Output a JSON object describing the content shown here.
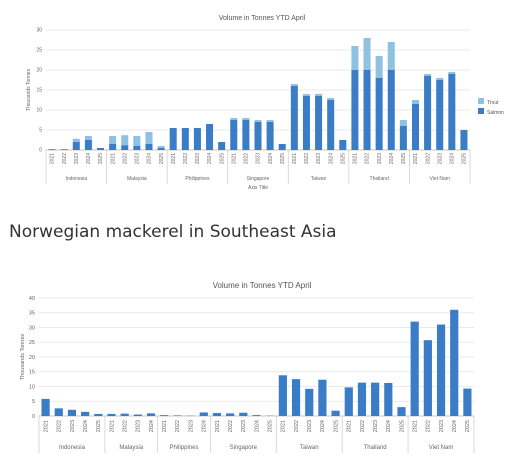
{
  "section_title": "Norwegian mackerel in Southeast Asia",
  "link_text": "",
  "chart_data": [
    {
      "type": "bar",
      "stacked": true,
      "title": "Volume in Tonnes YTD April",
      "ylabel": "Thousands Tonnes",
      "xlabel": "Axis Title",
      "ylim": [
        0,
        30
      ],
      "yticks": [
        0,
        5,
        10,
        15,
        20,
        25,
        30
      ],
      "legend": "right",
      "groups": [
        {
          "name": "Indonesia",
          "categories": [
            "2021",
            "2022",
            "2023",
            "2024",
            "2025"
          ],
          "series": [
            [
              0.2,
              0.2,
              2.0,
              2.5,
              0.5
            ],
            [
              0.0,
              0.0,
              0.8,
              1.0,
              0.0
            ]
          ]
        },
        {
          "name": "Malaysia",
          "categories": [
            "2021",
            "2022",
            "2023",
            "2024",
            "2025"
          ],
          "series": [
            [
              1.5,
              1.2,
              1.0,
              1.5,
              0.5
            ],
            [
              2.0,
              2.5,
              2.5,
              3.0,
              0.5
            ]
          ]
        },
        {
          "name": "Philippines",
          "categories": [
            "2021",
            "2022",
            "2023",
            "2024",
            "2025"
          ],
          "series": [
            [
              5.5,
              5.5,
              5.5,
              6.5,
              2.0
            ],
            [
              0.0,
              0.0,
              0.0,
              0.0,
              0.0
            ]
          ]
        },
        {
          "name": "Singapore",
          "categories": [
            "2021",
            "2022",
            "2023",
            "2024",
            "2025"
          ],
          "series": [
            [
              7.5,
              7.5,
              7.0,
              7.0,
              1.5
            ],
            [
              0.5,
              0.5,
              0.5,
              0.5,
              0.0
            ]
          ]
        },
        {
          "name": "Taiwan",
          "categories": [
            "2021",
            "2022",
            "2023",
            "2024",
            "2025"
          ],
          "series": [
            [
              16.0,
              13.5,
              13.5,
              12.5,
              2.5
            ],
            [
              0.5,
              0.5,
              0.5,
              0.5,
              0.0
            ]
          ]
        },
        {
          "name": "Thailand",
          "categories": [
            "2021",
            "2022",
            "2023",
            "2024",
            "2025"
          ],
          "series": [
            [
              20.0,
              20.0,
              18.0,
              20.0,
              6.0
            ],
            [
              6.0,
              8.0,
              5.5,
              7.0,
              1.5
            ]
          ]
        },
        {
          "name": "Viet Nam",
          "categories": [
            "2021",
            "2022",
            "2023",
            "2024",
            "2025"
          ],
          "series": [
            [
              11.5,
              18.5,
              17.5,
              19.0,
              5.0
            ],
            [
              1.0,
              0.5,
              0.5,
              0.5,
              0.0
            ]
          ]
        }
      ],
      "series_names": [
        "Salmon",
        "Trout"
      ],
      "series_colors": [
        "#3a7dc6",
        "#8fc1e3"
      ],
      "legend_order": [
        "Trout",
        "Salmon"
      ]
    },
    {
      "type": "bar",
      "title": "Volume in Tonnes YTD April",
      "ylabel": "Thousands Tonnes",
      "ylim": [
        0,
        40
      ],
      "yticks": [
        0,
        5,
        10,
        15,
        20,
        25,
        30,
        35,
        40
      ],
      "groups": [
        {
          "name": "Indonesia",
          "categories": [
            "2021",
            "2022",
            "2023",
            "2024",
            "2025"
          ],
          "values": [
            5.8,
            2.6,
            2.1,
            1.4,
            0.7
          ]
        },
        {
          "name": "Malaysia",
          "categories": [
            "2021",
            "2022",
            "2023",
            "2024"
          ],
          "values": [
            0.7,
            0.8,
            0.5,
            0.9
          ]
        },
        {
          "name": "Philippines",
          "categories": [
            "2021",
            "2022",
            "2023",
            "2024"
          ],
          "values": [
            0.3,
            0.2,
            0.1,
            1.2
          ]
        },
        {
          "name": "Singapore",
          "categories": [
            "2021",
            "2022",
            "2023",
            "2024",
            "2025"
          ],
          "values": [
            1.0,
            0.9,
            1.1,
            0.3,
            0.1
          ]
        },
        {
          "name": "Taiwan",
          "categories": [
            "2021",
            "2022",
            "2023",
            "2024",
            "2025"
          ],
          "values": [
            13.8,
            12.5,
            9.2,
            12.3,
            1.8
          ]
        },
        {
          "name": "Thailand",
          "categories": [
            "2021",
            "2022",
            "2023",
            "2024",
            "2025"
          ],
          "values": [
            9.7,
            11.3,
            11.3,
            11.2,
            3.0
          ]
        },
        {
          "name": "Viet Nam",
          "categories": [
            "2021",
            "2022",
            "2023",
            "2024",
            "2025"
          ],
          "values": [
            32.0,
            25.7,
            31.0,
            36.0,
            9.3
          ]
        }
      ],
      "color": "#3a7dc6"
    }
  ]
}
